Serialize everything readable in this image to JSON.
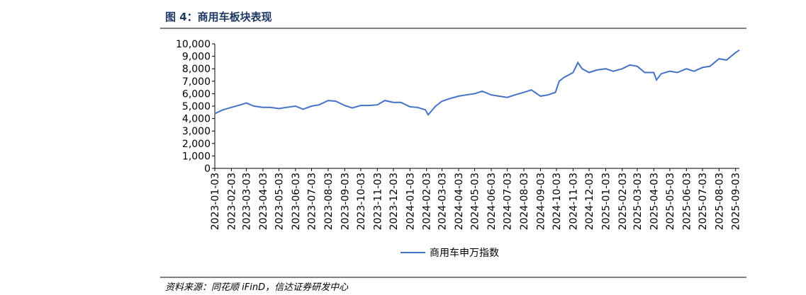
{
  "header": {
    "title": "图 4：商用车板块表现"
  },
  "chart_data": {
    "type": "line",
    "x": [
      "2023-01-03",
      "2023-01-18",
      "2023-02-03",
      "2023-02-20",
      "2023-03-03",
      "2023-03-17",
      "2023-04-03",
      "2023-04-17",
      "2023-05-03",
      "2023-05-17",
      "2023-06-03",
      "2023-06-17",
      "2023-07-03",
      "2023-07-17",
      "2023-08-03",
      "2023-08-17",
      "2023-09-03",
      "2023-09-17",
      "2023-10-03",
      "2023-10-17",
      "2023-11-03",
      "2023-11-17",
      "2023-12-03",
      "2023-12-17",
      "2024-01-03",
      "2024-01-17",
      "2024-02-01",
      "2024-02-06",
      "2024-02-20",
      "2024-03-03",
      "2024-03-17",
      "2024-04-03",
      "2024-04-17",
      "2024-05-03",
      "2024-05-17",
      "2024-06-03",
      "2024-06-17",
      "2024-07-03",
      "2024-07-17",
      "2024-08-03",
      "2024-08-17",
      "2024-09-03",
      "2024-09-17",
      "2024-10-01",
      "2024-10-08",
      "2024-10-17",
      "2024-11-03",
      "2024-11-12",
      "2024-11-20",
      "2024-12-03",
      "2024-12-17",
      "2025-01-03",
      "2025-01-17",
      "2025-02-03",
      "2025-02-17",
      "2025-03-03",
      "2025-03-17",
      "2025-04-03",
      "2025-04-08",
      "2025-04-17",
      "2025-05-03",
      "2025-05-17",
      "2025-06-03",
      "2025-06-17",
      "2025-07-03",
      "2025-07-17",
      "2025-08-03",
      "2025-08-17",
      "2025-09-03",
      "2025-09-10"
    ],
    "series": [
      {
        "name": "商用车申万指数",
        "color": "#4472c4",
        "values": [
          4400,
          4700,
          4900,
          5100,
          5250,
          5000,
          4900,
          4900,
          4800,
          4900,
          5000,
          4750,
          5000,
          5100,
          5450,
          5400,
          5050,
          4850,
          5050,
          5050,
          5100,
          5450,
          5300,
          5300,
          4950,
          4900,
          4700,
          4300,
          5000,
          5400,
          5600,
          5800,
          5900,
          6000,
          6200,
          5900,
          5800,
          5700,
          5900,
          6100,
          6300,
          5800,
          5900,
          6100,
          7000,
          7300,
          7700,
          8500,
          8000,
          7700,
          7900,
          8000,
          7800,
          8000,
          8300,
          8200,
          7700,
          7700,
          7100,
          7600,
          7800,
          7700,
          8000,
          7800,
          8100,
          8200,
          8800,
          8700,
          9300,
          9500
        ]
      }
    ],
    "xlim": [
      "2023-01-03",
      "2025-09-10"
    ],
    "xticks": [
      "2023-01-03",
      "2023-02-03",
      "2023-03-03",
      "2023-04-03",
      "2023-05-03",
      "2023-06-03",
      "2023-07-03",
      "2023-08-03",
      "2023-09-03",
      "2023-10-03",
      "2023-11-03",
      "2023-12-03",
      "2024-01-03",
      "2024-02-03",
      "2024-03-03",
      "2024-04-03",
      "2024-05-03",
      "2024-06-03",
      "2024-07-03",
      "2024-08-03",
      "2024-09-03",
      "2024-10-03",
      "2024-11-03",
      "2024-12-03",
      "2025-01-03",
      "2025-02-03",
      "2025-03-03",
      "2025-04-03",
      "2025-05-03",
      "2025-06-03",
      "2025-07-03",
      "2025-08-03",
      "2025-09-03"
    ],
    "ylim": [
      0,
      10000
    ],
    "yticks": [
      0,
      {
        "value": 1000,
        "label": "1,000"
      },
      {
        "value": 2000,
        "label": "2,000"
      },
      {
        "value": 3000,
        "label": "3,000"
      },
      {
        "value": 4000,
        "label": "4,000"
      },
      {
        "value": 5000,
        "label": "5,000"
      },
      {
        "value": 6000,
        "label": "6,000"
      },
      {
        "value": 7000,
        "label": "7,000"
      },
      {
        "value": 8000,
        "label": "8,000"
      },
      {
        "value": 9000,
        "label": "9,000"
      },
      {
        "value": 10000,
        "label": "10,000"
      }
    ]
  },
  "footer": {
    "source": "资料来源：同花顺 iFinD，信达证券研发中心"
  }
}
